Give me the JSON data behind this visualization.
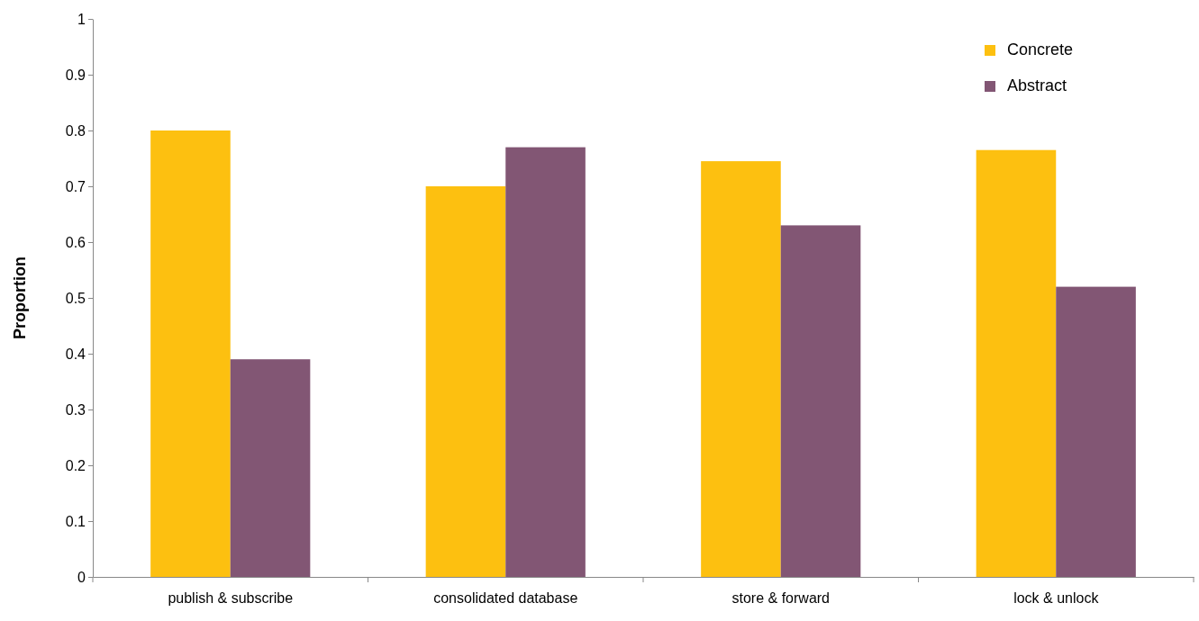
{
  "chart_data": {
    "type": "bar",
    "ylabel": "Proportion",
    "categories": [
      "publish & subscribe",
      "consolidated database",
      "store & forward",
      "lock & unlock"
    ],
    "series": [
      {
        "name": "Concrete",
        "color": "#fdc010",
        "values": [
          0.8,
          0.7,
          0.745,
          0.765
        ]
      },
      {
        "name": "Abstract",
        "color": "#825674",
        "values": [
          0.39,
          0.77,
          0.63,
          0.52
        ]
      }
    ],
    "ylim": [
      0,
      1
    ],
    "yticks": [
      0,
      0.1,
      0.2,
      0.3,
      0.4,
      0.5,
      0.6,
      0.7,
      0.8,
      0.9,
      1
    ],
    "grid": false,
    "legend": "top right"
  }
}
